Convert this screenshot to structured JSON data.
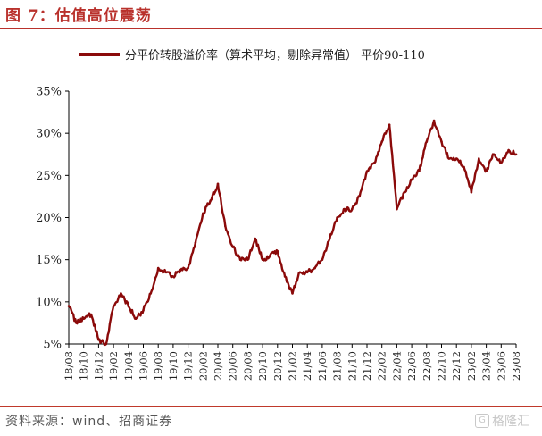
{
  "figure": {
    "title": "图 7：估值高位震荡",
    "source": "资料来源：wind、招商证券",
    "watermark": "格隆汇"
  },
  "colors": {
    "accent": "#b9312c",
    "series": "#8b0a0a",
    "axis": "#000000",
    "text": "#222222"
  },
  "chart_data": {
    "type": "line",
    "title": "",
    "xlabel": "",
    "ylabel": "",
    "ylim": [
      5,
      35
    ],
    "yticks": [
      "5%",
      "10%",
      "15%",
      "20%",
      "25%",
      "30%",
      "35%"
    ],
    "ytick_values": [
      5,
      10,
      15,
      20,
      25,
      30,
      35
    ],
    "xticks": [
      "18/08",
      "18/10",
      "18/12",
      "19/02",
      "19/04",
      "19/06",
      "19/08",
      "19/10",
      "19/12",
      "20/02",
      "20/04",
      "20/06",
      "20/08",
      "20/10",
      "20/12",
      "21/02",
      "21/04",
      "21/06",
      "21/08",
      "21/10",
      "21/12",
      "22/02",
      "22/04",
      "22/06",
      "22/08",
      "22/10",
      "22/12",
      "23/02",
      "23/04",
      "23/06",
      "23/08"
    ],
    "grid": false,
    "legend_position": "top-center",
    "series": [
      {
        "name": "分平价转股溢价率（算术平均，剔除异常值）  平价90-110",
        "x": [
          "18/08",
          "18/09",
          "18/10",
          "18/11",
          "18/12",
          "19/01",
          "19/02",
          "19/03",
          "19/04",
          "19/05",
          "19/06",
          "19/07",
          "19/08",
          "19/09",
          "19/10",
          "19/11",
          "19/12",
          "20/01",
          "20/02",
          "20/03",
          "20/04",
          "20/05",
          "20/06",
          "20/07",
          "20/08",
          "20/09",
          "20/10",
          "20/11",
          "20/12",
          "21/01",
          "21/02",
          "21/03",
          "21/04",
          "21/05",
          "21/06",
          "21/07",
          "21/08",
          "21/09",
          "21/10",
          "21/11",
          "21/12",
          "22/01",
          "22/02",
          "22/03",
          "22/04",
          "22/05",
          "22/06",
          "22/07",
          "22/08",
          "22/09",
          "22/10",
          "22/11",
          "22/12",
          "23/01",
          "23/02",
          "23/03",
          "23/04",
          "23/05",
          "23/06",
          "23/07",
          "23/08"
        ],
        "values": [
          9.5,
          7.5,
          8.0,
          8.5,
          5.5,
          5.0,
          9.5,
          11.0,
          9.5,
          8.0,
          9.0,
          11.0,
          14.0,
          13.5,
          13.0,
          13.8,
          14.0,
          17.0,
          20.5,
          22.0,
          24.0,
          19.0,
          16.5,
          15.0,
          15.0,
          17.5,
          15.0,
          15.5,
          16.0,
          13.0,
          11.0,
          13.5,
          13.5,
          14.0,
          15.0,
          17.5,
          20.0,
          21.0,
          21.0,
          22.5,
          25.5,
          26.5,
          29.0,
          31.0,
          21.0,
          23.0,
          24.5,
          25.5,
          29.0,
          31.5,
          29.0,
          27.0,
          27.0,
          26.0,
          23.0,
          27.0,
          25.5,
          27.5,
          26.5,
          28.0,
          27.5
        ]
      }
    ]
  }
}
